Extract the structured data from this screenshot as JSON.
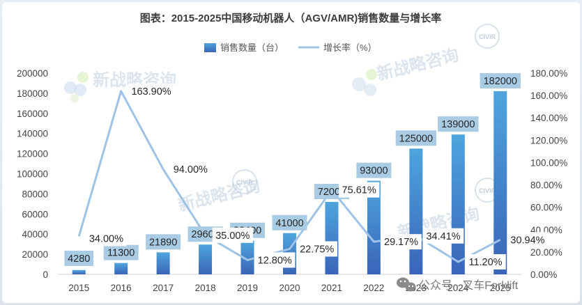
{
  "chart_data": {
    "type": "bar",
    "title": "图表：2015-2025中国移动机器人（AGV/AMR)销售数量与增长率",
    "categories": [
      "2015",
      "2016",
      "2017",
      "2018",
      "2019",
      "2020",
      "2021",
      "2022",
      "2023",
      "2024",
      "2025"
    ],
    "series": [
      {
        "name": "销售数量（台）",
        "type": "bar",
        "axis": "left",
        "values": [
          4280,
          11300,
          21890,
          29600,
          33400,
          41000,
          72000,
          93000,
          125000,
          139000,
          182000
        ],
        "labels": [
          "4280",
          "11300",
          "21890",
          "29600",
          "33400",
          "41000",
          "72000",
          "93000",
          "125000",
          "139000",
          "182000"
        ]
      },
      {
        "name": "增长率（%）",
        "type": "line",
        "axis": "right",
        "values": [
          34.0,
          163.9,
          94.0,
          35.0,
          12.8,
          22.75,
          75.61,
          29.17,
          34.41,
          11.2,
          30.94
        ],
        "labels": [
          "34.00%",
          "163.90%",
          "94.00%",
          "35.00%",
          "12.80%",
          "22.75%",
          "75.61%",
          "29.17%",
          "34.41%",
          "11.20%",
          "30.94%"
        ]
      }
    ],
    "y_left": {
      "range": [
        0,
        200000
      ],
      "ticks": [
        "0",
        "20000",
        "40000",
        "60000",
        "80000",
        "100000",
        "120000",
        "140000",
        "160000",
        "180000",
        "200000"
      ]
    },
    "y_right": {
      "range": [
        0,
        180
      ],
      "ticks": [
        "0.00%",
        "20.00%",
        "40.00%",
        "60.00%",
        "80.00%",
        "100.00%",
        "120.00%",
        "140.00%",
        "160.00%",
        "180.00%"
      ]
    },
    "legend": {
      "position": "top-center"
    },
    "grid": false,
    "colors": {
      "bar_top": "#4ea5dd",
      "bar_bottom": "#3a64b8",
      "line": "#9ec3e6",
      "label_box": "#a9cbe4"
    }
  },
  "watermark": {
    "brand": "新战略咨询",
    "badge": "CIVIR",
    "footer": "公众号 · 叉车Forklift"
  }
}
